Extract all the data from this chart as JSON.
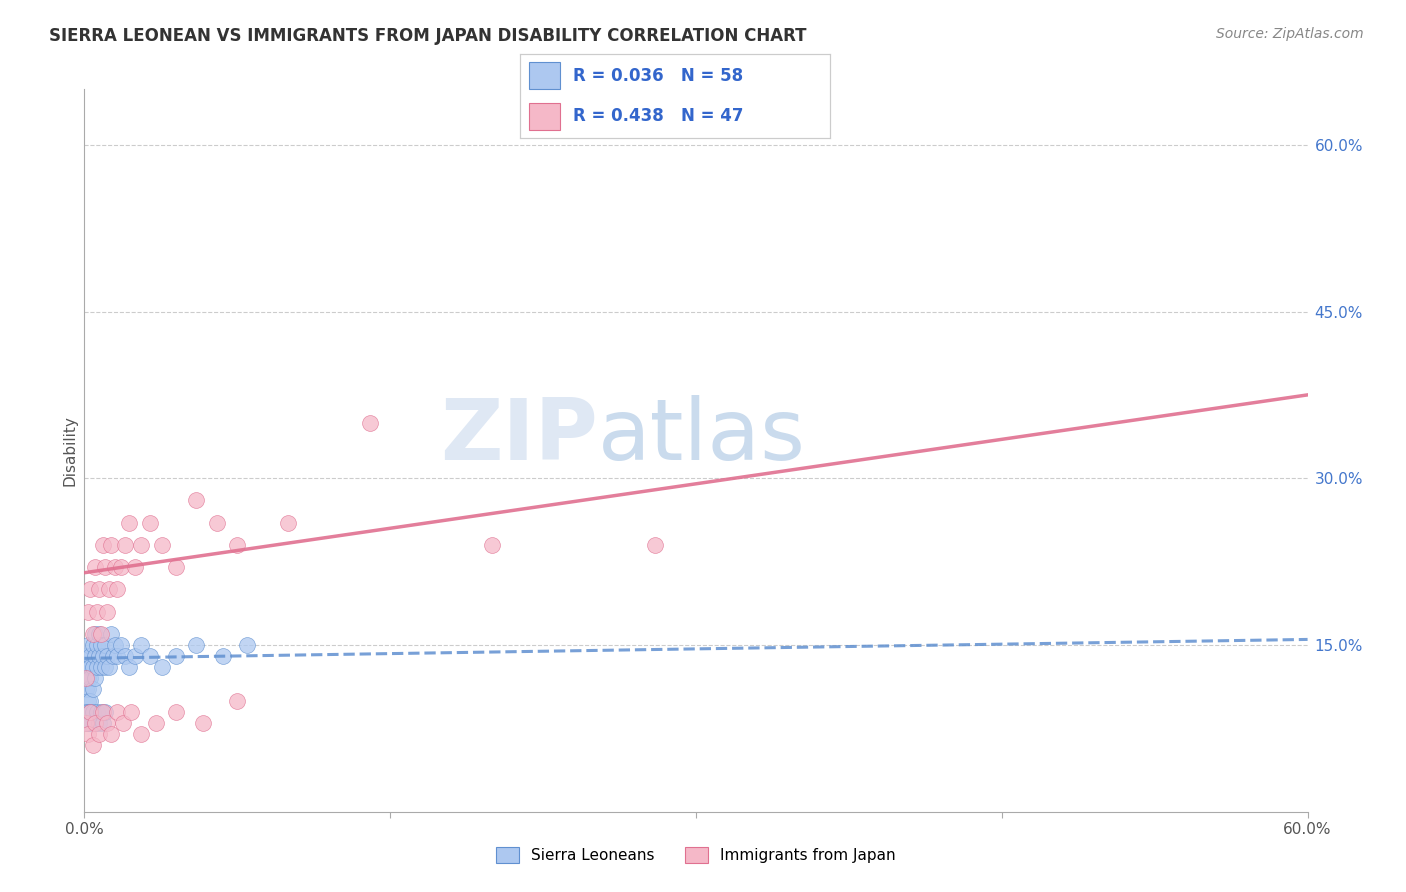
{
  "title": "SIERRA LEONEAN VS IMMIGRANTS FROM JAPAN DISABILITY CORRELATION CHART",
  "source": "Source: ZipAtlas.com",
  "ylabel": "Disability",
  "watermark_zip": "ZIP",
  "watermark_atlas": "atlas",
  "legend_blue_r": "R = 0.036",
  "legend_blue_n": "N = 58",
  "legend_pink_r": "R = 0.438",
  "legend_pink_n": "N = 47",
  "legend_blue_label": "Sierra Leoneans",
  "legend_pink_label": "Immigrants from Japan",
  "blue_fill": "#adc8f0",
  "pink_fill": "#f5b8c8",
  "blue_edge": "#6090d0",
  "pink_edge": "#e07090",
  "blue_line_color": "#6090d0",
  "pink_line_color": "#e07090",
  "ytick_labels": [
    "15.0%",
    "30.0%",
    "45.0%",
    "60.0%"
  ],
  "ytick_values": [
    0.15,
    0.3,
    0.45,
    0.6
  ],
  "xlim": [
    0.0,
    0.6
  ],
  "ylim": [
    0.0,
    0.65
  ],
  "blue_trend_x": [
    0.0,
    0.6
  ],
  "blue_trend_y": [
    0.138,
    0.155
  ],
  "pink_trend_x": [
    0.0,
    0.6
  ],
  "pink_trend_y": [
    0.215,
    0.375
  ],
  "blue_x": [
    0.001,
    0.001,
    0.001,
    0.001,
    0.002,
    0.002,
    0.002,
    0.002,
    0.002,
    0.003,
    0.003,
    0.003,
    0.003,
    0.004,
    0.004,
    0.004,
    0.005,
    0.005,
    0.005,
    0.006,
    0.006,
    0.007,
    0.007,
    0.008,
    0.008,
    0.009,
    0.01,
    0.01,
    0.011,
    0.012,
    0.013,
    0.014,
    0.015,
    0.016,
    0.018,
    0.02,
    0.022,
    0.025,
    0.028,
    0.032,
    0.038,
    0.045,
    0.055,
    0.068,
    0.08,
    0.001,
    0.001,
    0.002,
    0.002,
    0.003,
    0.003,
    0.004,
    0.005,
    0.006,
    0.007,
    0.008,
    0.009,
    0.01
  ],
  "blue_y": [
    0.14,
    0.13,
    0.12,
    0.11,
    0.15,
    0.13,
    0.12,
    0.11,
    0.1,
    0.14,
    0.13,
    0.12,
    0.1,
    0.15,
    0.13,
    0.11,
    0.16,
    0.14,
    0.12,
    0.15,
    0.13,
    0.16,
    0.14,
    0.15,
    0.13,
    0.14,
    0.15,
    0.13,
    0.14,
    0.13,
    0.16,
    0.14,
    0.15,
    0.14,
    0.15,
    0.14,
    0.13,
    0.14,
    0.15,
    0.14,
    0.13,
    0.14,
    0.15,
    0.14,
    0.15,
    0.09,
    0.08,
    0.09,
    0.08,
    0.09,
    0.08,
    0.09,
    0.08,
    0.09,
    0.08,
    0.09,
    0.08,
    0.09
  ],
  "pink_x": [
    0.001,
    0.002,
    0.003,
    0.004,
    0.005,
    0.006,
    0.007,
    0.008,
    0.009,
    0.01,
    0.011,
    0.012,
    0.013,
    0.015,
    0.016,
    0.018,
    0.02,
    0.022,
    0.025,
    0.028,
    0.032,
    0.038,
    0.045,
    0.055,
    0.065,
    0.075,
    0.001,
    0.002,
    0.003,
    0.004,
    0.005,
    0.007,
    0.009,
    0.011,
    0.013,
    0.016,
    0.019,
    0.023,
    0.028,
    0.035,
    0.045,
    0.058,
    0.075,
    0.1,
    0.14,
    0.2,
    0.28
  ],
  "pink_y": [
    0.12,
    0.18,
    0.2,
    0.16,
    0.22,
    0.18,
    0.2,
    0.16,
    0.24,
    0.22,
    0.18,
    0.2,
    0.24,
    0.22,
    0.2,
    0.22,
    0.24,
    0.26,
    0.22,
    0.24,
    0.26,
    0.24,
    0.22,
    0.28,
    0.26,
    0.24,
    0.08,
    0.07,
    0.09,
    0.06,
    0.08,
    0.07,
    0.09,
    0.08,
    0.07,
    0.09,
    0.08,
    0.09,
    0.07,
    0.08,
    0.09,
    0.08,
    0.1,
    0.26,
    0.35,
    0.24,
    0.24
  ]
}
